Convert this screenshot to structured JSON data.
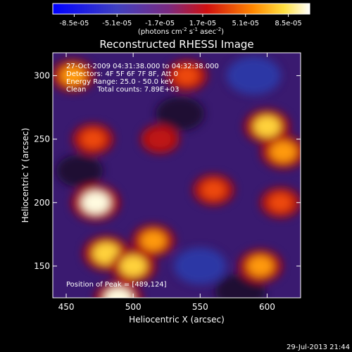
{
  "colorbar": {
    "ticks": [
      "-8.5e-05",
      "-5.1e-05",
      "-1.7e-05",
      "1.7e-05",
      "5.1e-05",
      "8.5e-05"
    ],
    "unit_main": "(photons cm",
    "unit_exp1": "-2",
    "unit_mid": " s",
    "unit_exp2": "-1",
    "unit_mid2": " asec",
    "unit_exp3": "-2",
    "unit_end": ")"
  },
  "chart_data": {
    "type": "heatmap",
    "title": "Reconstructed RHESSI Image",
    "xlabel": "Heliocentric X (arcsec)",
    "ylabel": "Heliocentric Y (arcsec)",
    "xlim": [
      440,
      625
    ],
    "ylim": [
      125,
      318
    ],
    "x_ticks": [
      450,
      500,
      550,
      600
    ],
    "y_ticks": [
      150,
      200,
      250,
      300
    ],
    "value_range": [
      -8.5e-05,
      8.5e-05
    ],
    "colormap": "black-purple-red-orange-yellow-white",
    "hot_spots": [
      {
        "x": 489,
        "y": 124,
        "level": 0.95
      },
      {
        "x": 472,
        "y": 200,
        "level": 1.0
      },
      {
        "x": 480,
        "y": 160,
        "level": 0.9
      },
      {
        "x": 500,
        "y": 150,
        "level": 0.85
      },
      {
        "x": 515,
        "y": 170,
        "level": 0.7
      },
      {
        "x": 600,
        "y": 260,
        "level": 0.85
      },
      {
        "x": 612,
        "y": 240,
        "level": 0.8
      },
      {
        "x": 595,
        "y": 150,
        "level": 0.75
      },
      {
        "x": 540,
        "y": 300,
        "level": 0.6
      },
      {
        "x": 455,
        "y": 300,
        "level": 0.7
      },
      {
        "x": 470,
        "y": 250,
        "level": 0.6
      },
      {
        "x": 520,
        "y": 250,
        "level": 0.45
      },
      {
        "x": 610,
        "y": 200,
        "level": 0.55
      },
      {
        "x": 560,
        "y": 210,
        "level": 0.6
      }
    ],
    "cold_spots": [
      {
        "x": 590,
        "y": 300,
        "level": 0.9
      },
      {
        "x": 550,
        "y": 150,
        "level": 0.8
      },
      {
        "x": 460,
        "y": 225,
        "level": 0.5
      },
      {
        "x": 535,
        "y": 270,
        "level": 0.6
      },
      {
        "x": 580,
        "y": 130,
        "level": 0.7
      }
    ]
  },
  "annotations": {
    "line1": "27-Oct-2009 04:31:38.000 to 04:32:38.000",
    "line2": "Detectors: 4F 5F 6F 7F 8F, Att 0",
    "line3": "Energy Range: 25.0 - 50.0 keV",
    "line4": "Clean     Total counts: 7.89E+03",
    "peak": "Position of Peak = [489,124]"
  },
  "timestamp": "29-Jul-2013 21:44"
}
